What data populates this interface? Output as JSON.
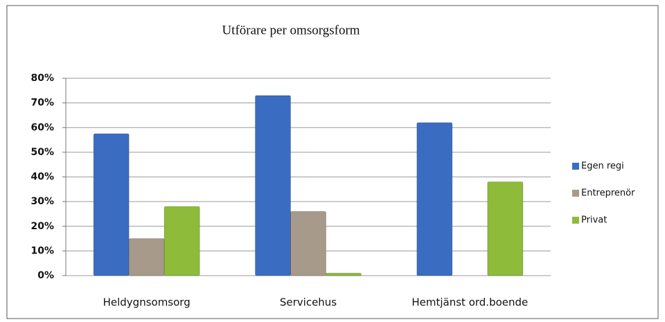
{
  "chart_data": {
    "type": "bar",
    "title": "Utförare per omsorgsform",
    "categories": [
      "Heldygnsomsorg",
      "Servicehus",
      "Hemtjänst ord.boende"
    ],
    "series": [
      {
        "name": "Egen regi",
        "color": "#3a6cc2",
        "values": [
          57.5,
          73,
          62
        ]
      },
      {
        "name": "Entreprenör",
        "color": "#a89a8a",
        "values": [
          15,
          26,
          0
        ]
      },
      {
        "name": "Privat",
        "color": "#8ebb3a",
        "values": [
          28,
          1,
          38
        ]
      }
    ],
    "ylim": [
      0,
      80
    ],
    "yticks": [
      {
        "value": 0,
        "label": "0%"
      },
      {
        "value": 10,
        "label": "10%"
      },
      {
        "value": 20,
        "label": "20%"
      },
      {
        "value": 30,
        "label": "30%"
      },
      {
        "value": 40,
        "label": "40%"
      },
      {
        "value": 50,
        "label": "50%"
      },
      {
        "value": 60,
        "label": "60%"
      },
      {
        "value": 70,
        "label": "70%"
      },
      {
        "value": 80,
        "label": "80%"
      }
    ],
    "grid": true,
    "legend": "right"
  }
}
